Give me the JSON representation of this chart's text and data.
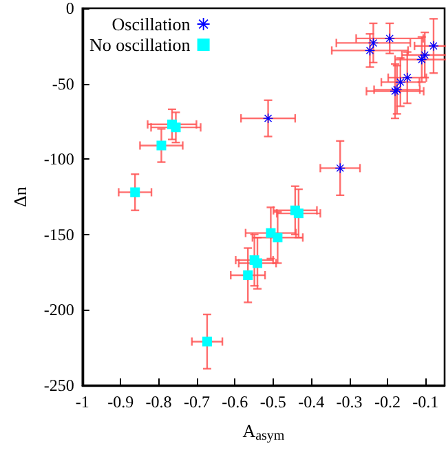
{
  "chart_data": {
    "type": "scatter",
    "xlabel": "A$_{asym}$",
    "ylabel": "Δn",
    "xlim": [
      -1,
      -0.05
    ],
    "xticks": [
      -1,
      -0.9,
      -0.8,
      -0.7,
      -0.6,
      -0.5,
      -0.4,
      -0.3,
      -0.2,
      -0.1
    ],
    "ylim": [
      -250,
      0
    ],
    "yticks": [
      -250,
      -200,
      -150,
      -100,
      -50,
      0
    ],
    "grid": false,
    "legend": "top left",
    "series": [
      {
        "name": "Oscillation",
        "color": "#0000ff",
        "marker": "star",
        "x": [
          -0.513,
          -0.324,
          -0.237,
          -0.246,
          -0.194,
          -0.079,
          -0.102,
          -0.11,
          -0.148,
          -0.166,
          -0.175,
          -0.18
        ],
        "values": [
          -73,
          -106,
          -23,
          -28,
          -20,
          -25,
          -31,
          -34,
          -46,
          -49,
          -54,
          -55
        ],
        "errors": [
          12,
          18,
          13,
          11,
          10,
          18,
          15,
          15,
          17,
          16,
          16,
          18
        ],
        "xerrors": [
          0.071,
          0.052,
          0.097,
          0.1,
          0.088,
          0.05,
          0.06,
          0.07,
          0.05,
          0.05,
          0.06,
          0.075
        ]
      },
      {
        "name": "No oscillation",
        "color": "#00ffff",
        "marker": "square",
        "x": [
          -0.765,
          -0.755,
          -0.793,
          -0.862,
          -0.442,
          -0.433,
          -0.506,
          -0.488,
          -0.549,
          -0.541,
          -0.566,
          -0.673
        ],
        "values": [
          -77,
          -79,
          -91,
          -122,
          -134,
          -136,
          -149,
          -152,
          -167,
          -169,
          -177,
          -221
        ],
        "errors": [
          10,
          10,
          11,
          12,
          16,
          16,
          17,
          17,
          17,
          17,
          18,
          18
        ],
        "xerrors": [
          0.064,
          0.065,
          0.056,
          0.043,
          0.057,
          0.057,
          0.066,
          0.066,
          0.049,
          0.049,
          0.045,
          0.04
        ]
      }
    ]
  }
}
